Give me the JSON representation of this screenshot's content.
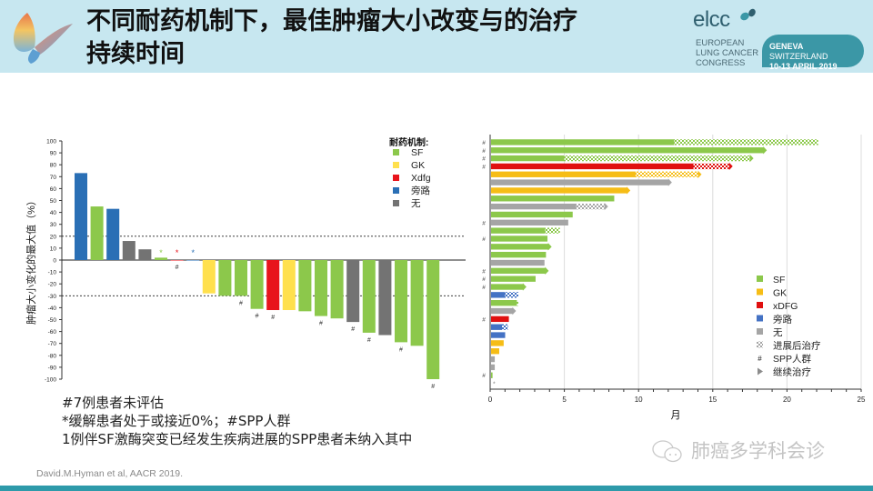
{
  "header": {
    "title_line1": "不同耐药机制下，最佳肿瘤大小改变与的治疗",
    "title_line2": "持续时间",
    "congress_logo": "elcc",
    "congress_name": [
      "EUROPEAN",
      "LUNG CANCER",
      "CONGRESS"
    ],
    "congress_location_bold": "GENEVA",
    "congress_location": " SWITZERLAND",
    "congress_dates": "10-13 APRIL 2019"
  },
  "notes": [
    "#7例患者未评估",
    "*缓解患者处于或接近0%；#SPP人群",
    "1例伴SF激酶突变已经发生疾病进展的SPP患者未纳入其中"
  ],
  "citation": "David.M.Hyman et al, AACR 2019.",
  "watermark": "肺癌多学科会诊",
  "colors": {
    "SF": "#8cc84b",
    "GK": "#ffe04d",
    "Xdfg": "#e8141c",
    "bypass": "#2a6fb5",
    "none": "#737373",
    "SF_right": "#8cc84b",
    "GK_right": "#f6bd16",
    "xDFG_right": "#e01010",
    "bypass_right": "#4472c4",
    "none_right": "#a5a5a5"
  },
  "chart_data": [
    {
      "type": "bar",
      "title": "",
      "ylabel": "肿瘤大小变化的最大值（%）",
      "xlabel": "",
      "ylim": [
        -100,
        100
      ],
      "yticks": [
        100,
        90,
        80,
        70,
        60,
        50,
        40,
        30,
        20,
        10,
        0,
        -10,
        -20,
        -30,
        -40,
        -50,
        -60,
        -70,
        -80,
        -90,
        -100
      ],
      "reference_lines": [
        20,
        -30
      ],
      "legend_title": "耐药机制:",
      "legend": [
        {
          "key": "SF",
          "label": "SF"
        },
        {
          "key": "GK",
          "label": "GK"
        },
        {
          "key": "Xdfg",
          "label": "Xdfg"
        },
        {
          "key": "bypass",
          "label": "旁路"
        },
        {
          "key": "none",
          "label": "无"
        }
      ],
      "legend_placement": "top-right",
      "bars": [
        {
          "value": 73,
          "mechanism": "bypass",
          "mark": ""
        },
        {
          "value": 45,
          "mechanism": "SF",
          "mark": ""
        },
        {
          "value": 43,
          "mechanism": "bypass",
          "mark": ""
        },
        {
          "value": 16,
          "mechanism": "none",
          "mark": ""
        },
        {
          "value": 9,
          "mechanism": "none",
          "mark": ""
        },
        {
          "value": 2,
          "mechanism": "SF",
          "mark": "*"
        },
        {
          "value": 0,
          "mechanism": "Xdfg",
          "mark": "*#"
        },
        {
          "value": 0,
          "mechanism": "bypass",
          "mark": "*"
        },
        {
          "value": -28,
          "mechanism": "GK",
          "mark": ""
        },
        {
          "value": -30,
          "mechanism": "SF",
          "mark": ""
        },
        {
          "value": -30,
          "mechanism": "SF",
          "mark": "#"
        },
        {
          "value": -41,
          "mechanism": "SF",
          "mark": "#"
        },
        {
          "value": -42,
          "mechanism": "Xdfg",
          "mark": "#"
        },
        {
          "value": -42,
          "mechanism": "GK",
          "mark": ""
        },
        {
          "value": -43,
          "mechanism": "SF",
          "mark": ""
        },
        {
          "value": -47,
          "mechanism": "SF",
          "mark": "#"
        },
        {
          "value": -49,
          "mechanism": "SF",
          "mark": ""
        },
        {
          "value": -52,
          "mechanism": "none",
          "mark": "#"
        },
        {
          "value": -61,
          "mechanism": "SF",
          "mark": "#"
        },
        {
          "value": -63,
          "mechanism": "none",
          "mark": ""
        },
        {
          "value": -69,
          "mechanism": "SF",
          "mark": "#"
        },
        {
          "value": -72,
          "mechanism": "SF",
          "mark": ""
        },
        {
          "value": -100,
          "mechanism": "SF",
          "mark": "#"
        }
      ]
    },
    {
      "type": "bar",
      "orientation": "horizontal",
      "title": "",
      "xlabel": "月",
      "ylabel": "",
      "xlim": [
        0,
        25
      ],
      "xticks": [
        0,
        5,
        10,
        15,
        20,
        25
      ],
      "grid": true,
      "legend": [
        {
          "key": "SF",
          "label": "SF"
        },
        {
          "key": "GK",
          "label": "GK"
        },
        {
          "key": "xDFG",
          "label": "xDFG"
        },
        {
          "key": "bypass",
          "label": "旁路"
        },
        {
          "key": "none",
          "label": "无"
        },
        {
          "key": "post_progression",
          "label": "进展后治疗"
        },
        {
          "key": "spp",
          "label": "SPP人群",
          "symbol": "#"
        },
        {
          "key": "continuing",
          "label": "继续治疗"
        }
      ],
      "legend_placement": "bottom-right",
      "bars": [
        {
          "mechanism": "SF",
          "months": 12.4,
          "post_progression_end": 22.1,
          "continuing": false,
          "spp": true
        },
        {
          "mechanism": "SF",
          "months": 18.4,
          "post_progression_end": null,
          "continuing": true,
          "spp": true
        },
        {
          "mechanism": "SF",
          "months": 5.0,
          "post_progression_end": 17.5,
          "continuing": true,
          "spp": true
        },
        {
          "mechanism": "xDFG",
          "months": 13.7,
          "post_progression_end": 16.1,
          "continuing": true,
          "spp": true
        },
        {
          "mechanism": "GK",
          "months": 9.8,
          "post_progression_end": 14.0,
          "continuing": true,
          "spp": false
        },
        {
          "mechanism": "none",
          "months": 12.0,
          "post_progression_end": null,
          "continuing": true,
          "spp": false
        },
        {
          "mechanism": "GK",
          "months": 9.2,
          "post_progression_end": null,
          "continuing": true,
          "spp": false
        },
        {
          "mechanism": "SF",
          "months": 8.3,
          "post_progression_end": null,
          "continuing": false,
          "spp": false
        },
        {
          "mechanism": "none",
          "months": 5.8,
          "post_progression_end": 7.7,
          "continuing": true,
          "spp": false
        },
        {
          "mechanism": "SF",
          "months": 5.5,
          "post_progression_end": null,
          "continuing": false,
          "spp": false
        },
        {
          "mechanism": "none",
          "months": 5.2,
          "post_progression_end": null,
          "continuing": false,
          "spp": true
        },
        {
          "mechanism": "SF",
          "months": 3.7,
          "post_progression_end": 4.7,
          "continuing": false,
          "spp": false
        },
        {
          "mechanism": "SF",
          "months": 3.8,
          "post_progression_end": null,
          "continuing": false,
          "spp": true
        },
        {
          "mechanism": "SF",
          "months": 3.9,
          "post_progression_end": null,
          "continuing": true,
          "spp": false
        },
        {
          "mechanism": "SF",
          "months": 3.7,
          "post_progression_end": null,
          "continuing": false,
          "spp": false
        },
        {
          "mechanism": "none",
          "months": 3.6,
          "post_progression_end": null,
          "continuing": false,
          "spp": false
        },
        {
          "mechanism": "SF",
          "months": 3.7,
          "post_progression_end": null,
          "continuing": true,
          "spp": true
        },
        {
          "mechanism": "SF",
          "months": 3.0,
          "post_progression_end": null,
          "continuing": false,
          "spp": true
        },
        {
          "mechanism": "SF",
          "months": 2.2,
          "post_progression_end": null,
          "continuing": true,
          "spp": true
        },
        {
          "mechanism": "bypass",
          "months": 1.0,
          "post_progression_end": 1.9,
          "continuing": false,
          "spp": false
        },
        {
          "mechanism": "SF",
          "months": 1.8,
          "post_progression_end": 1.9,
          "continuing": false,
          "spp": false
        },
        {
          "mechanism": "none",
          "months": 1.5,
          "post_progression_end": null,
          "continuing": true,
          "spp": false
        },
        {
          "mechanism": "xDFG",
          "months": 1.2,
          "post_progression_end": null,
          "continuing": false,
          "spp": true
        },
        {
          "mechanism": "bypass",
          "months": 0.8,
          "post_progression_end": 1.2,
          "continuing": false,
          "spp": false
        },
        {
          "mechanism": "bypass",
          "months": 0.95,
          "post_progression_end": null,
          "continuing": false,
          "spp": false
        },
        {
          "mechanism": "GK",
          "months": 0.85,
          "post_progression_end": null,
          "continuing": false,
          "spp": false
        },
        {
          "mechanism": "GK",
          "months": 0.55,
          "post_progression_end": null,
          "continuing": false,
          "spp": false
        },
        {
          "mechanism": "none",
          "months": 0.25,
          "post_progression_end": null,
          "continuing": false,
          "spp": false
        },
        {
          "mechanism": "none",
          "months": 0.25,
          "post_progression_end": null,
          "continuing": false,
          "spp": false
        },
        {
          "mechanism": "SF",
          "months": 0.1,
          "post_progression_end": null,
          "continuing": false,
          "spp": true
        },
        {
          "mechanism": "none",
          "months": 0.0,
          "post_progression_end": null,
          "continuing": false,
          "spp": false,
          "mark": "*"
        }
      ]
    }
  ]
}
